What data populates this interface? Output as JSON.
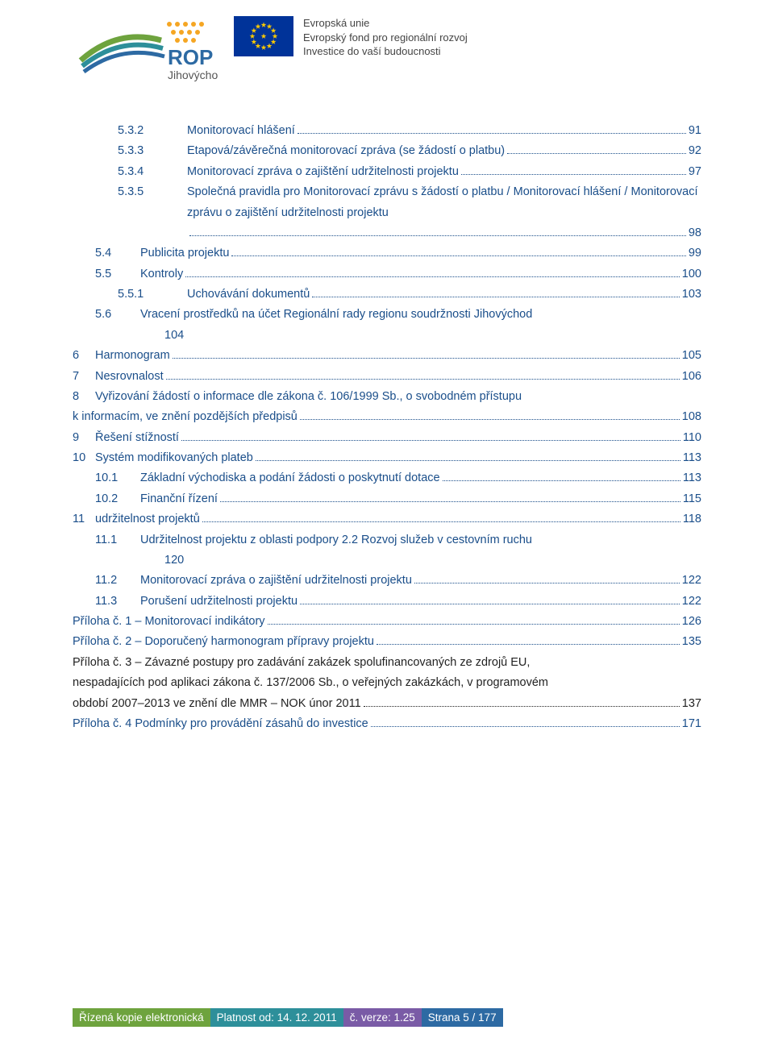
{
  "colors": {
    "link_blue": "#1a4e8a",
    "text_black": "#222222",
    "footer_green": "#6ea33e",
    "footer_teal": "#2d8f9a",
    "footer_purple": "#7a5ba6",
    "footer_blue": "#2d6aa3",
    "eu_flag_bg": "#003399",
    "eu_star": "#ffcc00"
  },
  "header": {
    "rop_label": "Jihovýchod",
    "eu_lines": {
      "l1": "Evropská unie",
      "l2": "Evropský fond pro regionální rozvoj",
      "l3": "Investice do vaší budoucnosti"
    }
  },
  "toc": [
    {
      "level": 2,
      "num": "5.3.2",
      "title": "Monitorovací hlášení",
      "page": "91",
      "color": "blue"
    },
    {
      "level": 2,
      "num": "5.3.3",
      "title": "Etapová/závěrečná monitorovací zpráva (se žádostí o platbu)",
      "page": "92",
      "color": "blue"
    },
    {
      "level": 2,
      "num": "5.3.4",
      "title": "Monitorovací zpráva o zajištění udržitelnosti projektu",
      "page": "97",
      "color": "blue"
    },
    {
      "level": 2,
      "num": "5.3.5",
      "title": "Společná pravidla pro Monitorovací zprávu s žádostí o platbu / Monitorovací hlášení / Monitorovací zprávu o zajištění udržitelnosti projektu",
      "page": "98",
      "color": "blue",
      "wrap": true,
      "cont_indent": 3
    },
    {
      "level": 1,
      "num": "5.4",
      "title": "Publicita projektu",
      "page": "99",
      "color": "blue"
    },
    {
      "level": 1,
      "num": "5.5",
      "title": "Kontroly",
      "page": "100",
      "color": "blue"
    },
    {
      "level": 2,
      "num": "5.5.1",
      "title": "Uchovávání dokumentů",
      "page": "103",
      "color": "blue"
    },
    {
      "level": 1,
      "num": "5.6",
      "title": "Vracení prostředků na účet Regionální rady regionu soudržnosti Jihovýchod",
      "page_inline": "104",
      "color": "blue",
      "wrap": true,
      "cont_indent": 3,
      "no_dots": true
    },
    {
      "level": 0,
      "num": "6",
      "title": "Harmonogram",
      "page": "105",
      "color": "blue"
    },
    {
      "level": 0,
      "num": "7",
      "title": "Nesrovnalost",
      "page": "106",
      "color": "blue"
    },
    {
      "level": 0,
      "num": "8",
      "title": "Vyřizování žádostí o informace dle zákona č. 106/1999 Sb., o svobodném přístupu",
      "color": "blue",
      "wrap_open": true
    },
    {
      "level": 0,
      "num": "",
      "title": "k informacím, ve znění pozdějších předpisů",
      "page": "108",
      "color": "blue",
      "no_num": true
    },
    {
      "level": 0,
      "num": "9",
      "title": "Řešení stížností",
      "page": "110",
      "color": "blue"
    },
    {
      "level": 0,
      "num": "10",
      "title": "Systém modifikovaných plateb",
      "page": "113",
      "color": "blue"
    },
    {
      "level": 1,
      "num": "10.1",
      "title": "Základní východiska a podání žádosti o poskytnutí dotace",
      "page": "113",
      "color": "blue"
    },
    {
      "level": 1,
      "num": "10.2",
      "title": "Finanční řízení",
      "page": "115",
      "color": "blue"
    },
    {
      "level": 0,
      "num": "11",
      "title": "udržitelnost projektů",
      "page": "118",
      "color": "blue"
    },
    {
      "level": 1,
      "num": "11.1",
      "title": "Udržitelnost projektu z oblasti podpory 2.2 Rozvoj služeb v cestovním ruchu",
      "page_inline": "120",
      "color": "blue",
      "wrap": true,
      "cont_indent": 3,
      "no_dots": true
    },
    {
      "level": 1,
      "num": "11.2",
      "title": "Monitorovací zpráva o zajištění udržitelnosti projektu",
      "page": "122",
      "color": "blue"
    },
    {
      "level": 1,
      "num": "11.3",
      "title": "Porušení udržitelnosti projektu",
      "page": "122",
      "color": "blue"
    },
    {
      "level": 0,
      "num": "",
      "title": "Příloha č. 1 – Monitorovací indikátory",
      "page": "126",
      "color": "blue",
      "no_num": true
    },
    {
      "level": 0,
      "num": "",
      "title": "Příloha č. 2 – Doporučený harmonogram přípravy projektu",
      "page": "135",
      "color": "blue",
      "no_num": true
    },
    {
      "level": 0,
      "num": "",
      "title": "Příloha č. 3 – Závazné postupy pro zadávání zakázek spolufinancovaných ze zdrojů EU,",
      "color": "black",
      "no_num": true,
      "wrap_open": true
    },
    {
      "level": 0,
      "num": "",
      "title": "nespadajících pod aplikaci zákona č. 137/2006 Sb., o veřejných zakázkách, v programovém",
      "color": "black",
      "no_num": true,
      "wrap_open": true
    },
    {
      "level": 0,
      "num": "",
      "title": "období 2007–2013 ve znění dle MMR – NOK únor 2011",
      "page": "137",
      "color": "black",
      "no_num": true
    },
    {
      "level": 0,
      "num": "",
      "title": "Příloha č. 4 Podmínky pro provádění zásahů do investice",
      "page": "171",
      "color": "blue",
      "no_num": true
    }
  ],
  "footer": {
    "c1": "Řízená kopie elektronická",
    "c2": "Platnost od: 14. 12. 2011",
    "c3": "č. verze: 1.25",
    "c4": "Strana 5 / 177"
  }
}
